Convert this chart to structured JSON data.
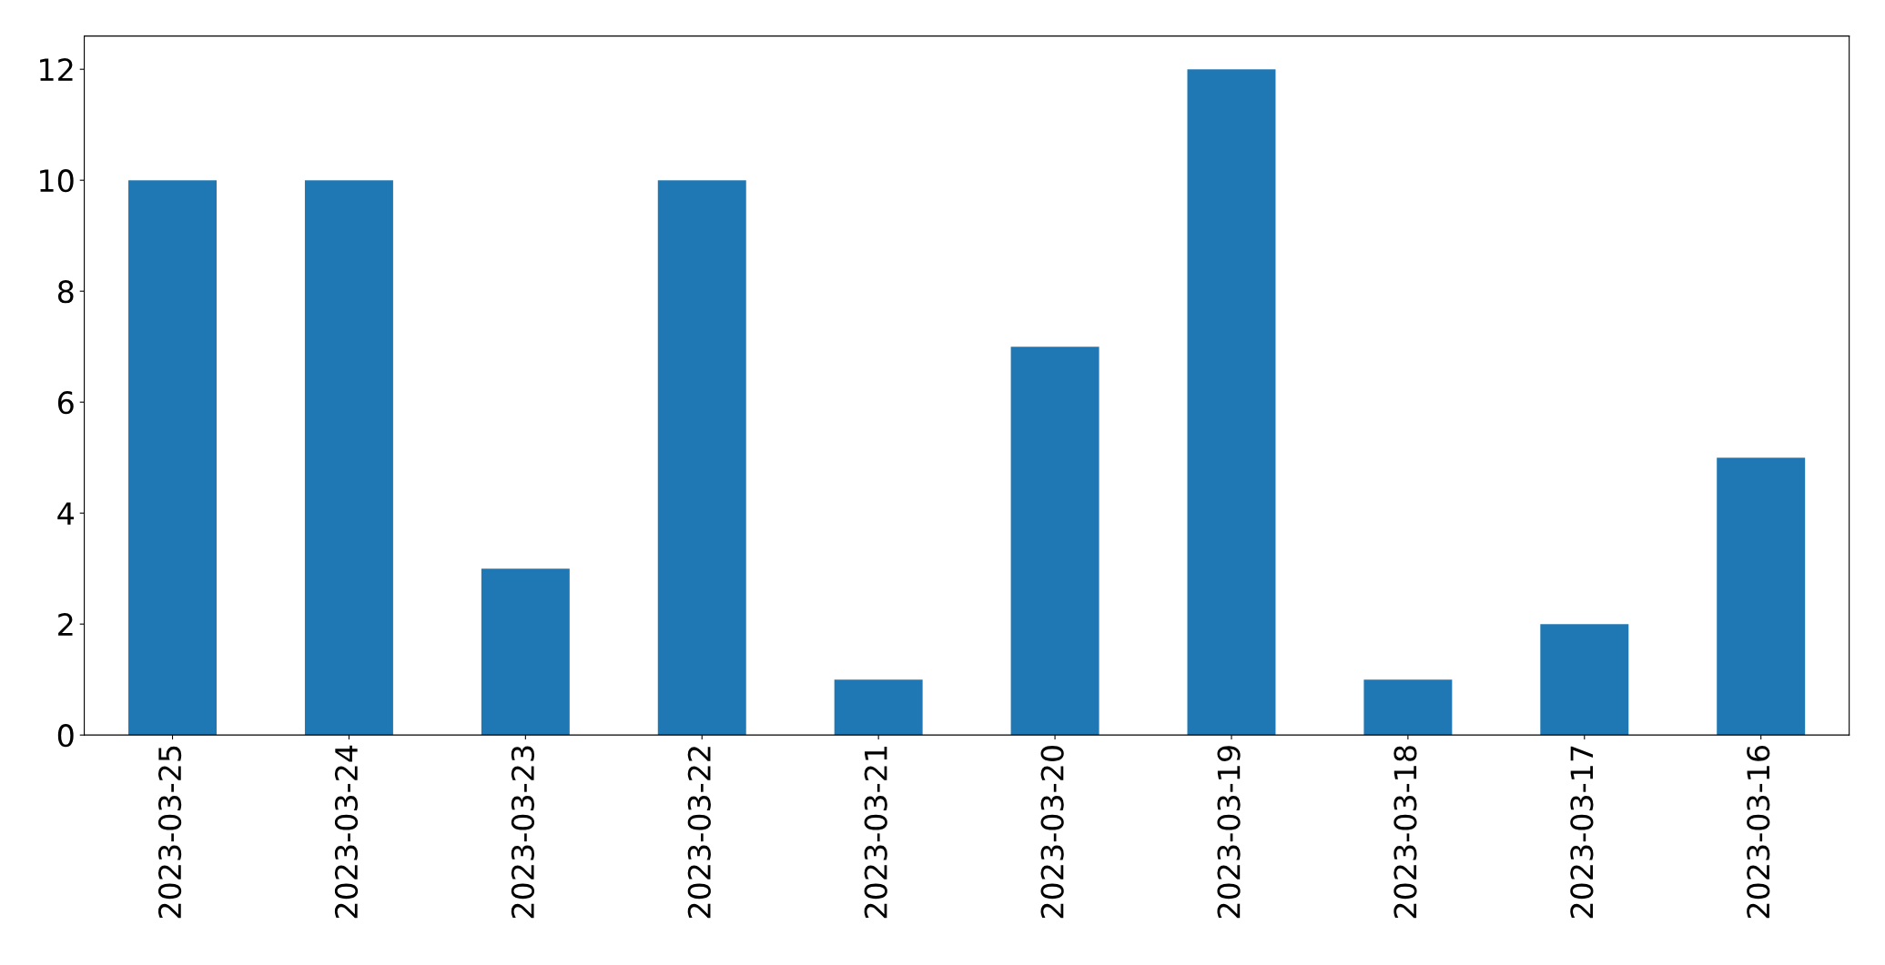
{
  "chart_data": {
    "type": "bar",
    "categories": [
      "2023-03-25",
      "2023-03-24",
      "2023-03-23",
      "2023-03-22",
      "2023-03-21",
      "2023-03-20",
      "2023-03-19",
      "2023-03-18",
      "2023-03-17",
      "2023-03-16"
    ],
    "values": [
      10,
      10,
      3,
      10,
      1,
      7,
      12,
      1,
      2,
      5
    ],
    "color": "#1f77b4",
    "ylim": [
      0,
      12.6
    ],
    "yticks": [
      0,
      2,
      4,
      6,
      8,
      10,
      12
    ],
    "grid": false
  }
}
